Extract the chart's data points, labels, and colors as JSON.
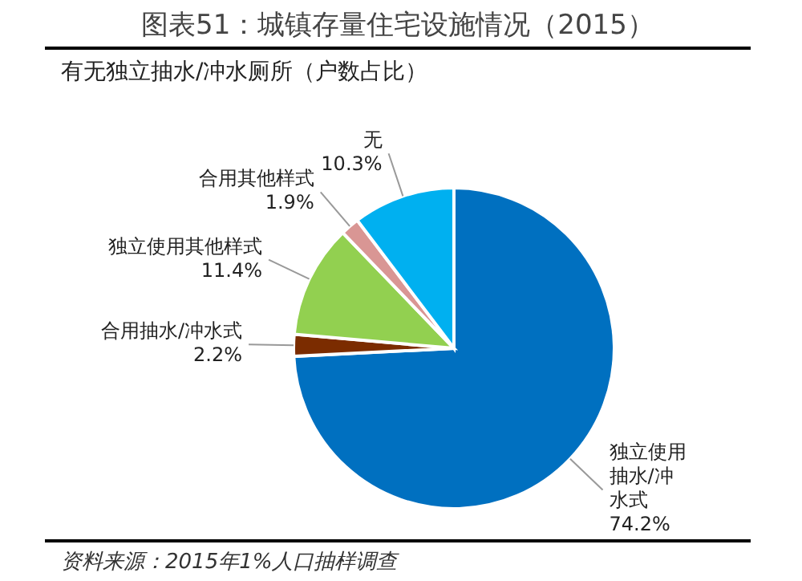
{
  "chart_data": {
    "type": "pie",
    "title": "图表51：城镇存量住宅设施情况（2015）",
    "subtitle": "有无独立抽水/冲水厕所（户数占比）",
    "categories": [
      "独立使用抽水/冲水式",
      "合用抽水/冲水式",
      "独立使用其他样式",
      "合用其他样式",
      "无"
    ],
    "values": [
      74.2,
      2.2,
      11.4,
      1.9,
      10.3
    ],
    "colors": [
      "#0070c0",
      "#7b2c00",
      "#92d050",
      "#d99694",
      "#00b0f0"
    ],
    "value_labels": [
      "74.2%",
      "2.2%",
      "11.4%",
      "1.9%",
      "10.3%"
    ],
    "annotations": [
      "资料来源：2015年1%人口抽样调查"
    ]
  }
}
